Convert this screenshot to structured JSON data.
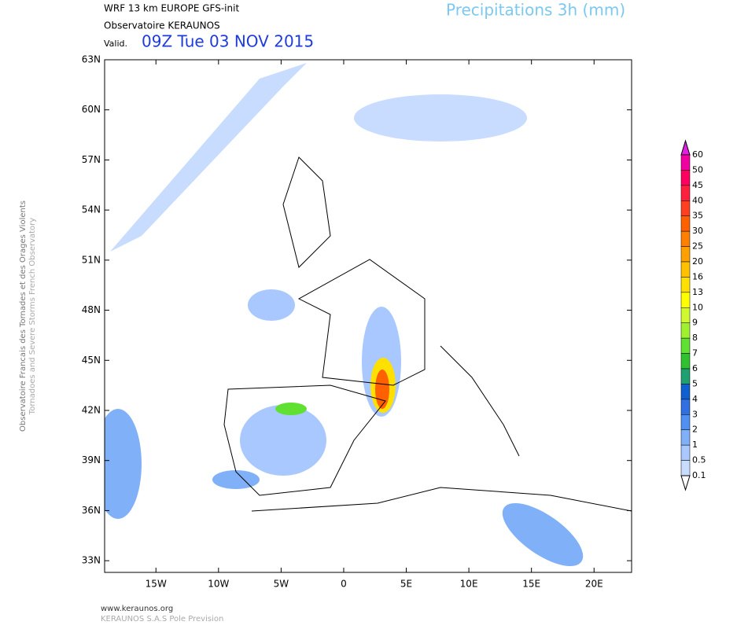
{
  "header": {
    "model": "WRF 13 km EUROPE  GFS-init",
    "observatory": "Observatoire KERAUNOS",
    "valid_prefix": "Valid.",
    "valid_time": "09Z Tue 03 NOV 2015",
    "title": "Precipitations 3h (mm)"
  },
  "side_text": [
    "Observatoire Francais des Tornades et des Orages Violents",
    "Tornadoes and Severe Storms French Observatory"
  ],
  "map": {
    "xlim": [
      -19.1,
      23.0
    ],
    "ylim": [
      32.3,
      63.0
    ],
    "xticks": [
      {
        "value": -15,
        "label": "15W"
      },
      {
        "value": -10,
        "label": "10W"
      },
      {
        "value": -5,
        "label": "5W"
      },
      0,
      {
        "value": 5,
        "label": "5E"
      },
      {
        "value": 10,
        "label": "10E"
      },
      {
        "value": 15,
        "label": "15E"
      },
      {
        "value": 20,
        "label": "20E"
      }
    ],
    "yticks": [
      {
        "value": 63,
        "label": "63N"
      },
      {
        "value": 60,
        "label": "60N"
      },
      {
        "value": 57,
        "label": "57N"
      },
      {
        "value": 54,
        "label": "54N"
      },
      {
        "value": 51,
        "label": "51N"
      },
      {
        "value": 48,
        "label": "48N"
      },
      {
        "value": 45,
        "label": "45N"
      },
      {
        "value": 42,
        "label": "42N"
      },
      {
        "value": 39,
        "label": "39N"
      },
      {
        "value": 36,
        "label": "36N"
      },
      {
        "value": 33,
        "label": "33N"
      }
    ]
  },
  "colorbar": {
    "levels": [
      60,
      50,
      45,
      40,
      35,
      30,
      25,
      20,
      16,
      13,
      10,
      9,
      8,
      7,
      6,
      5,
      4,
      3,
      2,
      1,
      0.5,
      0.1
    ],
    "colors": [
      "#e020e0",
      "#f000a0",
      "#ff0060",
      "#ff2040",
      "#ff4020",
      "#ff6000",
      "#ff8000",
      "#ffa000",
      "#ffc000",
      "#ffe000",
      "#ffff00",
      "#d0f830",
      "#a0f030",
      "#60e030",
      "#30c030",
      "#20a070",
      "#1060d0",
      "#3070e0",
      "#5090f0",
      "#80b0f8",
      "#a8c8ff",
      "#c8dcff",
      "#ffffff"
    ]
  },
  "footer": {
    "website": "www.keraunos.org",
    "company": "KERAUNOS S.A.S Pole Prevision"
  }
}
